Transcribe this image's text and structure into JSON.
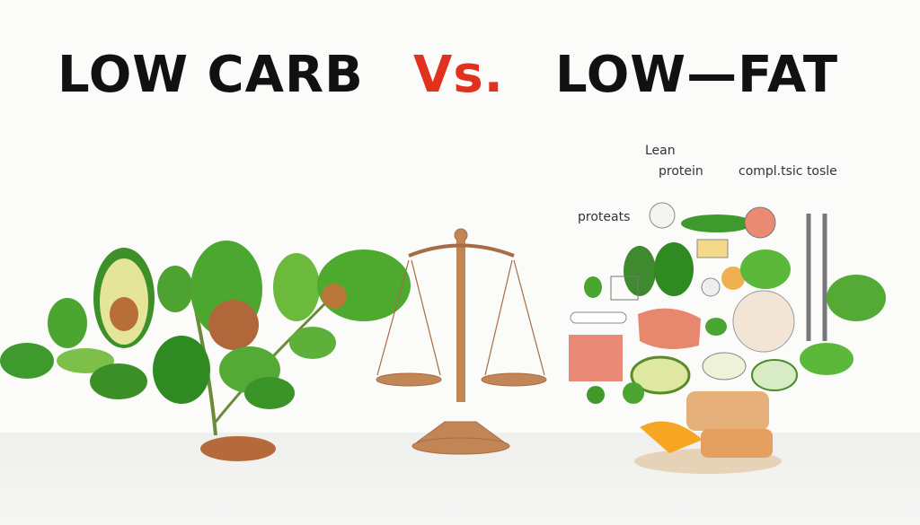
{
  "title": {
    "left": "LOW CARB",
    "versus": "Vs.",
    "right": "LOW—FAT"
  },
  "labels": {
    "lean": "Lean",
    "protein": "protein",
    "complex": "compl.tsic tosle",
    "proteats": "proteats"
  },
  "colors": {
    "versus": "#e0321f",
    "title": "#111111",
    "leaf": "#3f9a2a",
    "scale": "#b87a4b"
  }
}
